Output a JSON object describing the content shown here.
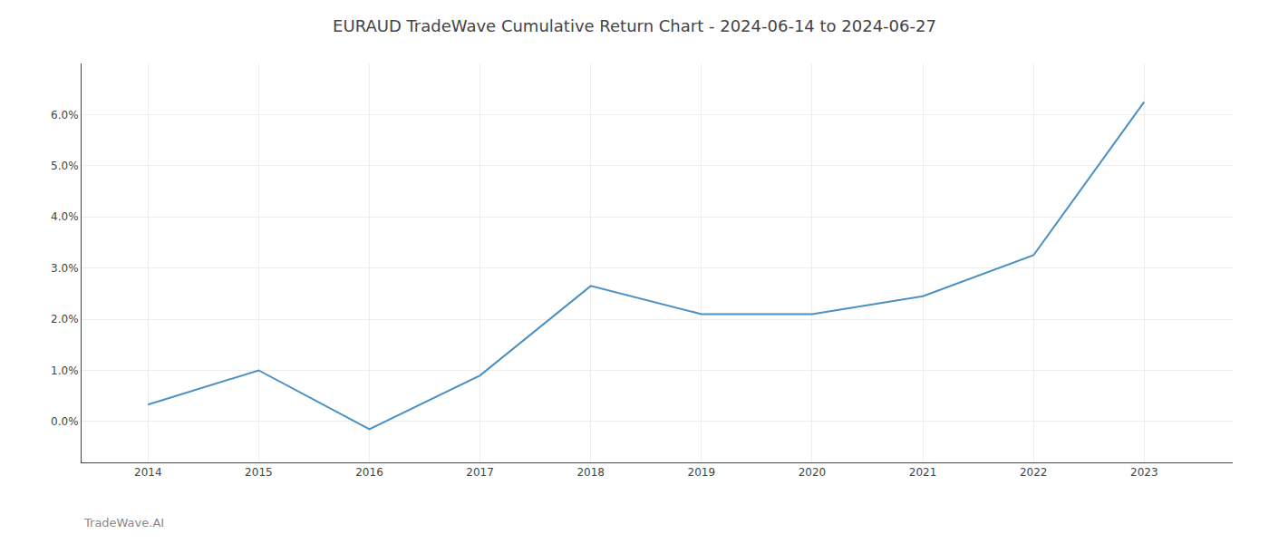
{
  "chart_data": {
    "type": "line",
    "title": "EURAUD TradeWave Cumulative Return Chart - 2024-06-14 to 2024-06-27",
    "annotations": [
      "TradeWave.AI"
    ],
    "x": [
      2014,
      2015,
      2016,
      2017,
      2018,
      2019,
      2020,
      2021,
      2022,
      2023
    ],
    "values": [
      0.0033,
      0.01,
      -0.0015,
      0.009,
      0.0265,
      0.021,
      0.021,
      0.0245,
      0.0325,
      0.0625
    ],
    "color": "#4a90c4",
    "xlim": [
      2013.4,
      2023.8
    ],
    "xticks": [
      2014,
      2015,
      2016,
      2017,
      2018,
      2019,
      2020,
      2021,
      2022,
      2023
    ],
    "ylim": [
      -0.008,
      0.07
    ],
    "yticks": [
      {
        "value": 0.0,
        "label": "0.0%"
      },
      {
        "value": 0.01,
        "label": "1.0%"
      },
      {
        "value": 0.02,
        "label": "2.0%"
      },
      {
        "value": 0.03,
        "label": "3.0%"
      },
      {
        "value": 0.04,
        "label": "4.0%"
      },
      {
        "value": 0.05,
        "label": "5.0%"
      },
      {
        "value": 0.06,
        "label": "6.0%"
      }
    ],
    "grid": true
  }
}
